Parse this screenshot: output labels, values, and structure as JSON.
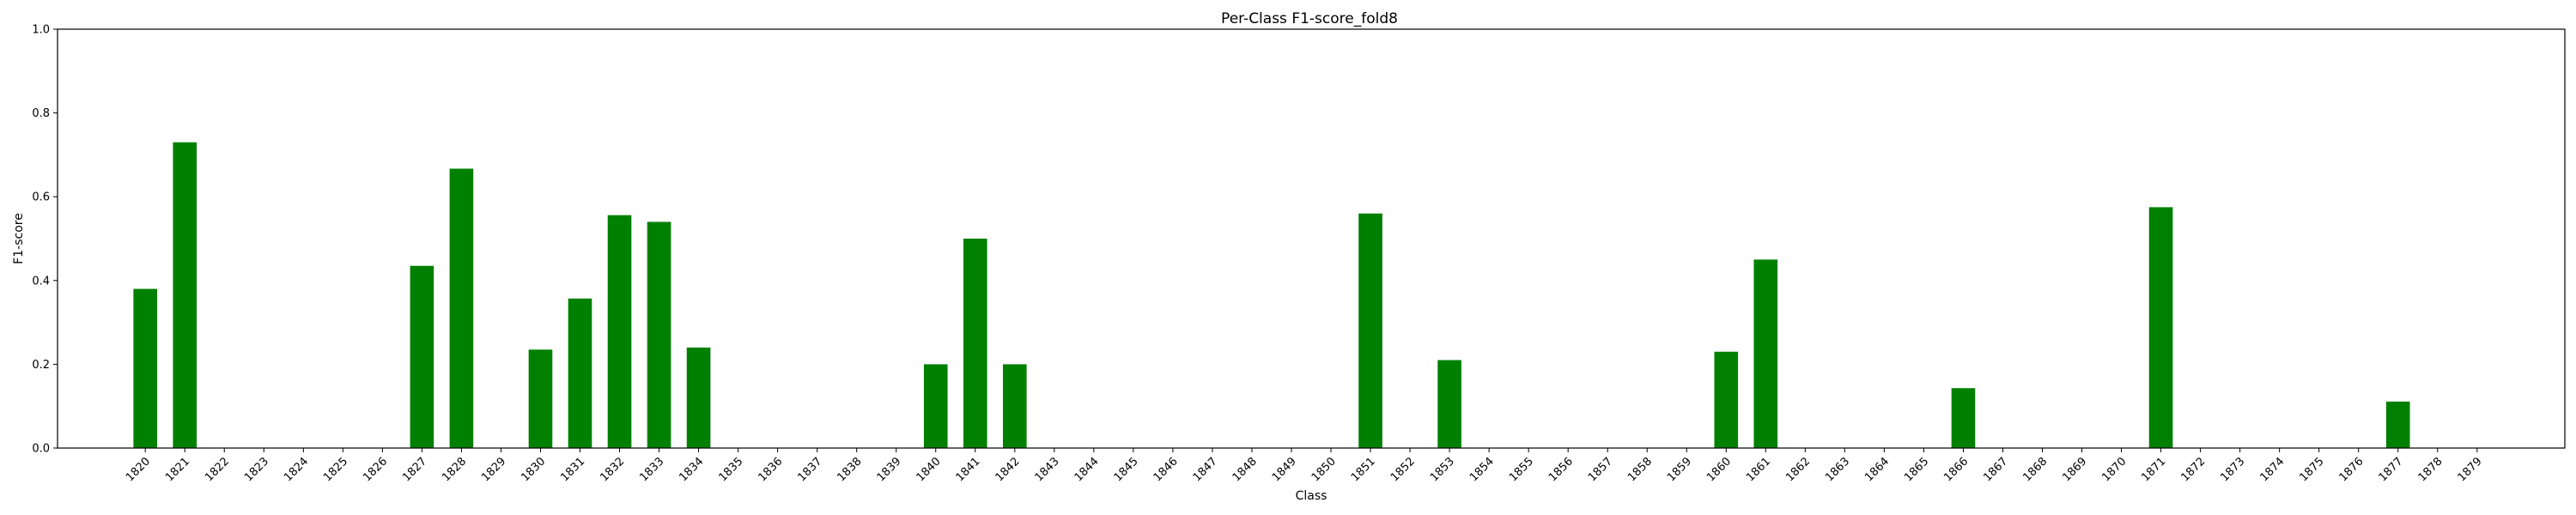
{
  "chart_data": {
    "type": "bar",
    "title": "Per-Class F1-score_fold8",
    "xlabel": "Class",
    "ylabel": "F1-score",
    "ylim": [
      0.0,
      1.0
    ],
    "yticks": [
      "0.0",
      "0.2",
      "0.4",
      "0.6",
      "0.8",
      "1.0"
    ],
    "grid": false,
    "bar_color": "#008000",
    "categories": [
      "1820",
      "1821",
      "1822",
      "1823",
      "1824",
      "1825",
      "1826",
      "1827",
      "1828",
      "1829",
      "1830",
      "1831",
      "1832",
      "1833",
      "1834",
      "1835",
      "1836",
      "1837",
      "1838",
      "1839",
      "1840",
      "1841",
      "1842",
      "1843",
      "1844",
      "1845",
      "1846",
      "1847",
      "1848",
      "1849",
      "1850",
      "1851",
      "1852",
      "1853",
      "1854",
      "1855",
      "1856",
      "1857",
      "1858",
      "1859",
      "1860",
      "1861",
      "1862",
      "1863",
      "1864",
      "1865",
      "1866",
      "1867",
      "1868",
      "1869",
      "1870",
      "1871",
      "1872",
      "1873",
      "1874",
      "1875",
      "1876",
      "1877",
      "1878",
      "1879"
    ],
    "values": [
      0.38,
      0.73,
      0,
      0,
      0,
      0,
      0,
      0.435,
      0.667,
      0,
      0.235,
      0.357,
      0.556,
      0.54,
      0.24,
      0,
      0,
      0,
      0,
      0,
      0.2,
      0.5,
      0.2,
      0,
      0,
      0,
      0,
      0,
      0,
      0,
      0,
      0.56,
      0,
      0.21,
      0,
      0,
      0,
      0,
      0,
      0,
      0.23,
      0.45,
      0,
      0,
      0,
      0,
      0.143,
      0,
      0,
      0,
      0,
      0.575,
      0,
      0,
      0,
      0,
      0,
      0.111,
      0,
      0
    ]
  }
}
